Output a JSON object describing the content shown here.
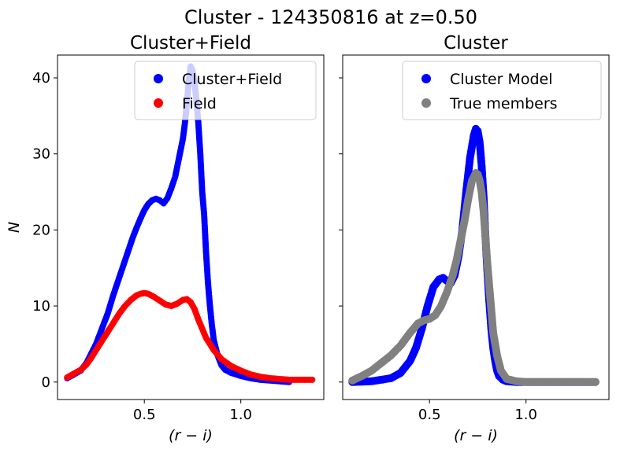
{
  "figure": {
    "suptitle": "Cluster - 124350816 at z=0.50"
  },
  "chart_data": [
    {
      "type": "scatter",
      "title": "Cluster+Field",
      "xlabel": "(r − i)",
      "ylabel": "N",
      "xlim": [
        0.05,
        1.43
      ],
      "ylim": [
        -2.3,
        43.0
      ],
      "xticks": [
        0.5,
        1.0
      ],
      "xtick_labels": [
        "0.5",
        "1.0"
      ],
      "yticks": [
        0,
        10,
        20,
        30,
        40
      ],
      "ytick_labels": [
        "0",
        "10",
        "20",
        "30",
        "40"
      ],
      "grid": false,
      "legend": "top-right",
      "series": [
        {
          "name": "Cluster+Field",
          "color": "#0000ff",
          "x": [
            0.1,
            0.17,
            0.2,
            0.22,
            0.25,
            0.28,
            0.31,
            0.34,
            0.36,
            0.38,
            0.4,
            0.42,
            0.44,
            0.46,
            0.48,
            0.5,
            0.52,
            0.54,
            0.56,
            0.58,
            0.6,
            0.62,
            0.64,
            0.66,
            0.68,
            0.7,
            0.71,
            0.72,
            0.73,
            0.74,
            0.75,
            0.76,
            0.77,
            0.78,
            0.79,
            0.8,
            0.81,
            0.82,
            0.83,
            0.84,
            0.85,
            0.86,
            0.88,
            0.9,
            0.92,
            0.95,
            1.0,
            1.05,
            1.1,
            1.15,
            1.2,
            1.25
          ],
          "y": [
            0.5,
            1.5,
            2.5,
            3.5,
            5.0,
            7.0,
            9.0,
            11.5,
            13.0,
            14.5,
            16.0,
            17.5,
            19.0,
            20.3,
            21.5,
            22.6,
            23.4,
            23.9,
            24.1,
            23.9,
            23.5,
            24.2,
            25.5,
            27.0,
            29.5,
            32.0,
            34.0,
            36.5,
            39.5,
            41.5,
            41.0,
            39.5,
            37.0,
            34.0,
            30.0,
            25.0,
            22.0,
            17.0,
            13.0,
            10.0,
            7.5,
            5.5,
            3.5,
            2.2,
            1.6,
            1.2,
            0.8,
            0.5,
            0.3,
            0.2,
            0.1,
            0.0
          ]
        },
        {
          "name": "Field",
          "color": "#ff0000",
          "x": [
            0.1,
            0.17,
            0.2,
            0.22,
            0.25,
            0.28,
            0.31,
            0.34,
            0.37,
            0.4,
            0.43,
            0.46,
            0.48,
            0.5,
            0.52,
            0.55,
            0.58,
            0.61,
            0.64,
            0.67,
            0.7,
            0.72,
            0.74,
            0.76,
            0.78,
            0.8,
            0.82,
            0.84,
            0.86,
            0.88,
            0.9,
            0.95,
            1.0,
            1.05,
            1.1,
            1.15,
            1.2,
            1.25,
            1.3,
            1.34,
            1.37
          ],
          "y": [
            0.6,
            1.6,
            2.3,
            3.0,
            4.2,
            5.4,
            6.6,
            7.8,
            9.0,
            10.0,
            10.8,
            11.4,
            11.6,
            11.7,
            11.6,
            11.2,
            10.7,
            10.2,
            10.0,
            10.3,
            10.8,
            10.9,
            10.5,
            9.6,
            8.2,
            7.0,
            5.8,
            5.0,
            4.2,
            3.6,
            3.0,
            2.1,
            1.5,
            1.0,
            0.7,
            0.5,
            0.4,
            0.3,
            0.3,
            0.3,
            0.3
          ]
        }
      ]
    },
    {
      "type": "scatter",
      "title": "Cluster",
      "xlabel": "(r − i)",
      "ylabel": "",
      "xlim": [
        0.05,
        1.43
      ],
      "ylim": [
        -2.3,
        43.0
      ],
      "xticks": [
        0.5,
        1.0
      ],
      "xtick_labels": [
        "0.5",
        "1.0"
      ],
      "yticks": [
        0,
        10,
        20,
        30,
        40
      ],
      "grid": false,
      "legend": "top-right",
      "series": [
        {
          "name": "Cluster Model",
          "color": "#0000ff",
          "x": [
            0.1,
            0.2,
            0.3,
            0.35,
            0.4,
            0.43,
            0.46,
            0.49,
            0.52,
            0.55,
            0.57,
            0.59,
            0.61,
            0.63,
            0.65,
            0.67,
            0.69,
            0.71,
            0.73,
            0.74,
            0.75,
            0.76,
            0.77,
            0.78,
            0.79,
            0.8,
            0.81,
            0.82,
            0.83,
            0.84,
            0.85,
            0.86,
            0.88,
            0.9,
            0.95,
            1.0,
            1.1,
            1.2,
            1.3,
            1.36
          ],
          "y": [
            0.0,
            0.1,
            0.5,
            1.2,
            2.8,
            4.5,
            7.0,
            10.0,
            12.5,
            13.5,
            13.7,
            13.3,
            13.0,
            14.0,
            16.5,
            20.0,
            25.0,
            29.5,
            32.5,
            33.3,
            33.0,
            31.5,
            28.5,
            24.5,
            19.0,
            14.5,
            10.5,
            7.0,
            4.5,
            2.8,
            1.5,
            0.8,
            0.3,
            0.1,
            0.0,
            0.0,
            0.0,
            0.0,
            0.0,
            0.0
          ]
        },
        {
          "name": "True members",
          "color": "#808080",
          "x": [
            0.1,
            0.15,
            0.2,
            0.25,
            0.3,
            0.35,
            0.4,
            0.44,
            0.47,
            0.5,
            0.53,
            0.56,
            0.59,
            0.62,
            0.64,
            0.66,
            0.68,
            0.7,
            0.72,
            0.74,
            0.75,
            0.76,
            0.77,
            0.78,
            0.79,
            0.8,
            0.81,
            0.82,
            0.83,
            0.85,
            0.87,
            0.9,
            0.95,
            1.0,
            1.1,
            1.2,
            1.3,
            1.36
          ],
          "y": [
            0.2,
            0.8,
            1.5,
            2.5,
            3.5,
            4.8,
            6.5,
            7.7,
            8.1,
            8.3,
            8.8,
            10.0,
            11.8,
            14.0,
            16.0,
            18.5,
            21.0,
            24.0,
            26.5,
            27.5,
            27.3,
            26.5,
            25.0,
            22.5,
            19.0,
            15.5,
            12.5,
            9.5,
            6.5,
            3.5,
            1.5,
            0.4,
            0.1,
            0.0,
            0.0,
            0.0,
            0.0,
            0.0
          ]
        }
      ]
    }
  ]
}
